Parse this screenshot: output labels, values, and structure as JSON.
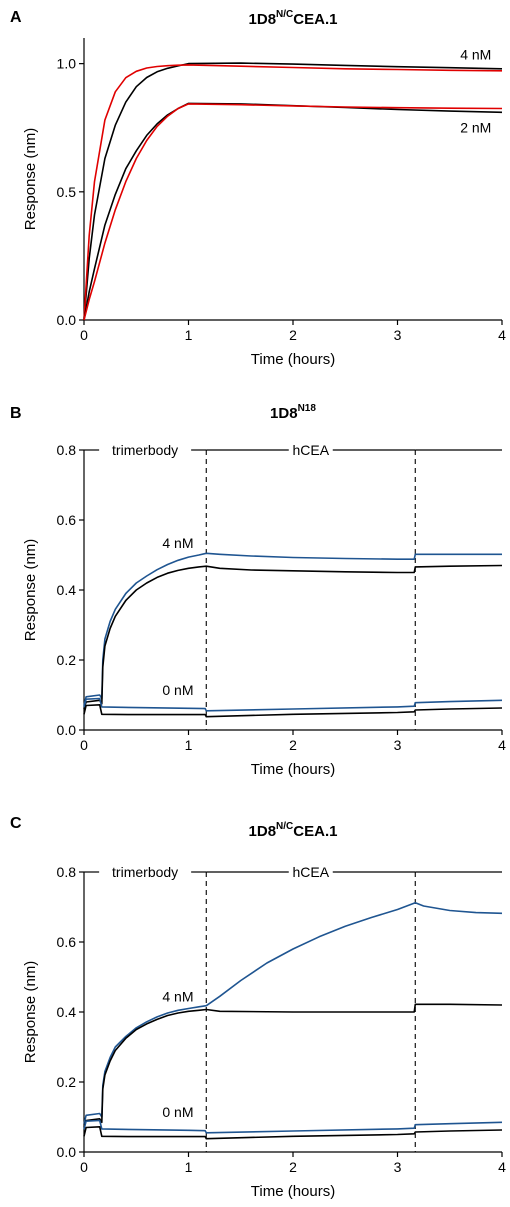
{
  "colors": {
    "measured_black": "#000000",
    "fit_red": "#e00000",
    "measured_blue": "#1f5591"
  },
  "chart_data": [
    {
      "panel": "A",
      "type": "line",
      "title": {
        "main": "1D8",
        "sup": "N/C",
        "rest": "CEA.1"
      },
      "xlabel": "Time (hours)",
      "ylabel": "Response (nm)",
      "xlim": [
        0,
        4
      ],
      "ylim": [
        0,
        1.1
      ],
      "xticks": [
        0,
        1,
        2,
        3,
        4
      ],
      "yticks": [
        0.0,
        0.5,
        1.0
      ],
      "ytick_labels": [
        "0.0",
        "0.5",
        "1.0"
      ],
      "grid": false,
      "annotations": [
        {
          "text": "4 nM",
          "x": 3.6,
          "y": 1.035
        },
        {
          "text": "2 nM",
          "x": 3.6,
          "y": 0.75
        }
      ],
      "series": [
        {
          "color": "#000000",
          "x": [
            0,
            0.05,
            0.1,
            0.2,
            0.3,
            0.4,
            0.5,
            0.6,
            0.7,
            0.8,
            0.9,
            1.0,
            1.5,
            2.0,
            2.5,
            3.0,
            3.5,
            4.0
          ],
          "y": [
            0,
            0.24,
            0.41,
            0.63,
            0.76,
            0.85,
            0.91,
            0.946,
            0.968,
            0.982,
            0.991,
            1.0,
            1.002,
            0.998,
            0.993,
            0.988,
            0.984,
            0.98
          ]
        },
        {
          "color": "#e00000",
          "x": [
            0,
            0.05,
            0.1,
            0.2,
            0.3,
            0.4,
            0.5,
            0.6,
            0.7,
            0.8,
            0.9,
            1.0,
            1.5,
            2.0,
            2.5,
            3.0,
            3.5,
            4.0
          ],
          "y": [
            0,
            0.33,
            0.54,
            0.78,
            0.89,
            0.945,
            0.97,
            0.983,
            0.989,
            0.992,
            0.994,
            0.995,
            0.99,
            0.985,
            0.98,
            0.977,
            0.974,
            0.972
          ]
        },
        {
          "color": "#000000",
          "x": [
            0,
            0.05,
            0.1,
            0.2,
            0.3,
            0.4,
            0.5,
            0.6,
            0.7,
            0.8,
            0.9,
            1.0,
            1.5,
            2.0,
            2.5,
            3.0,
            3.5,
            4.0
          ],
          "y": [
            0,
            0.11,
            0.2,
            0.37,
            0.49,
            0.59,
            0.66,
            0.72,
            0.765,
            0.8,
            0.825,
            0.845,
            0.843,
            0.836,
            0.829,
            0.821,
            0.815,
            0.81
          ]
        },
        {
          "color": "#e00000",
          "x": [
            0,
            0.05,
            0.1,
            0.2,
            0.3,
            0.4,
            0.5,
            0.6,
            0.7,
            0.8,
            0.9,
            1.0,
            1.5,
            2.0,
            2.5,
            3.0,
            3.5,
            4.0
          ],
          "y": [
            0,
            0.08,
            0.15,
            0.3,
            0.43,
            0.54,
            0.63,
            0.7,
            0.755,
            0.795,
            0.825,
            0.843,
            0.84,
            0.835,
            0.831,
            0.828,
            0.826,
            0.825
          ]
        }
      ]
    },
    {
      "panel": "B",
      "type": "line",
      "title": {
        "main": "1D8",
        "sup": "N18",
        "rest": ""
      },
      "xlabel": "Time (hours)",
      "ylabel": "Response (nm)",
      "xlim": [
        0,
        4
      ],
      "ylim": [
        0,
        0.8
      ],
      "xticks": [
        0,
        1,
        2,
        3,
        4
      ],
      "yticks": [
        0.0,
        0.2,
        0.4,
        0.6,
        0.8
      ],
      "ytick_labels": [
        "0.0",
        "0.2",
        "0.4",
        "0.6",
        "0.8"
      ],
      "grid": false,
      "phases": [
        {
          "label": "trimerbody",
          "start": 0,
          "end": 1.17
        },
        {
          "label": "hCEA",
          "start": 1.17,
          "end": 3.17
        },
        {
          "label": "",
          "start": 3.17,
          "end": 4
        }
      ],
      "dividers": [
        1.17,
        3.17
      ],
      "annotations": [
        {
          "text": "4 nM",
          "x": 0.75,
          "y": 0.535
        },
        {
          "text": "0 nM",
          "x": 0.75,
          "y": 0.115
        }
      ],
      "series": [
        {
          "color": "#1f5591",
          "x": [
            0,
            0.02,
            0.15,
            0.17,
            0.18,
            0.2,
            0.25,
            0.3,
            0.4,
            0.5,
            0.6,
            0.7,
            0.8,
            0.9,
            1.0,
            1.1,
            1.17,
            1.3,
            1.6,
            2.0,
            2.5,
            3.0,
            3.16,
            3.17,
            3.5,
            4.0
          ],
          "y": [
            0.07,
            0.095,
            0.1,
            0.09,
            0.2,
            0.26,
            0.31,
            0.345,
            0.39,
            0.42,
            0.44,
            0.458,
            0.473,
            0.485,
            0.494,
            0.5,
            0.505,
            0.502,
            0.497,
            0.493,
            0.49,
            0.488,
            0.488,
            0.502,
            0.502,
            0.502
          ]
        },
        {
          "color": "#000000",
          "x": [
            0,
            0.02,
            0.15,
            0.17,
            0.18,
            0.2,
            0.25,
            0.3,
            0.4,
            0.5,
            0.6,
            0.7,
            0.8,
            0.9,
            1.0,
            1.1,
            1.17,
            1.3,
            1.6,
            2.0,
            2.5,
            3.0,
            3.16,
            3.17,
            3.5,
            4.0
          ],
          "y": [
            0.06,
            0.08,
            0.085,
            0.075,
            0.18,
            0.24,
            0.29,
            0.325,
            0.37,
            0.4,
            0.42,
            0.436,
            0.448,
            0.456,
            0.462,
            0.466,
            0.468,
            0.462,
            0.457,
            0.455,
            0.452,
            0.45,
            0.45,
            0.466,
            0.468,
            0.47
          ]
        },
        {
          "color": "#1f5591",
          "x": [
            0,
            0.02,
            0.15,
            0.17,
            0.5,
            1.0,
            1.16,
            1.17,
            2.0,
            3.0,
            3.16,
            3.17,
            3.5,
            4.0
          ],
          "y": [
            0.065,
            0.088,
            0.09,
            0.066,
            0.064,
            0.062,
            0.061,
            0.055,
            0.06,
            0.066,
            0.068,
            0.078,
            0.081,
            0.085
          ]
        },
        {
          "color": "#000000",
          "x": [
            0,
            0.02,
            0.15,
            0.17,
            0.5,
            1.0,
            1.16,
            1.17,
            2.0,
            3.0,
            3.16,
            3.17,
            3.5,
            4.0
          ],
          "y": [
            0.045,
            0.07,
            0.072,
            0.045,
            0.044,
            0.044,
            0.044,
            0.038,
            0.045,
            0.05,
            0.052,
            0.057,
            0.06,
            0.063
          ]
        }
      ]
    },
    {
      "panel": "C",
      "type": "line",
      "title": {
        "main": "1D8",
        "sup": "N/C",
        "rest": "CEA.1"
      },
      "xlabel": "Time (hours)",
      "ylabel": "Response (nm)",
      "xlim": [
        0,
        4
      ],
      "ylim": [
        0,
        0.8
      ],
      "xticks": [
        0,
        1,
        2,
        3,
        4
      ],
      "yticks": [
        0.0,
        0.2,
        0.4,
        0.6,
        0.8
      ],
      "ytick_labels": [
        "0.0",
        "0.2",
        "0.4",
        "0.6",
        "0.8"
      ],
      "grid": false,
      "phases": [
        {
          "label": "trimerbody",
          "start": 0,
          "end": 1.17
        },
        {
          "label": "hCEA",
          "start": 1.17,
          "end": 3.17
        },
        {
          "label": "",
          "start": 3.17,
          "end": 4
        }
      ],
      "dividers": [
        1.17,
        3.17
      ],
      "annotations": [
        {
          "text": "4 nM",
          "x": 0.75,
          "y": 0.445
        },
        {
          "text": "0 nM",
          "x": 0.75,
          "y": 0.115
        }
      ],
      "series": [
        {
          "color": "#1f5591",
          "x": [
            0,
            0.02,
            0.15,
            0.17,
            0.18,
            0.2,
            0.25,
            0.3,
            0.4,
            0.5,
            0.6,
            0.7,
            0.8,
            0.9,
            1.0,
            1.1,
            1.17,
            1.3,
            1.5,
            1.75,
            2.0,
            2.25,
            2.5,
            2.75,
            3.0,
            3.17,
            3.25,
            3.5,
            3.75,
            4.0
          ],
          "y": [
            0.08,
            0.105,
            0.11,
            0.1,
            0.19,
            0.23,
            0.27,
            0.3,
            0.33,
            0.355,
            0.372,
            0.386,
            0.397,
            0.405,
            0.41,
            0.415,
            0.418,
            0.445,
            0.49,
            0.54,
            0.58,
            0.615,
            0.645,
            0.67,
            0.693,
            0.712,
            0.703,
            0.69,
            0.684,
            0.682
          ]
        },
        {
          "color": "#000000",
          "x": [
            0,
            0.02,
            0.15,
            0.17,
            0.18,
            0.2,
            0.25,
            0.3,
            0.4,
            0.5,
            0.6,
            0.7,
            0.8,
            0.9,
            1.0,
            1.1,
            1.17,
            1.3,
            2.0,
            3.0,
            3.16,
            3.17,
            3.5,
            4.0
          ],
          "y": [
            0.07,
            0.09,
            0.095,
            0.085,
            0.18,
            0.22,
            0.26,
            0.29,
            0.325,
            0.35,
            0.366,
            0.379,
            0.39,
            0.397,
            0.402,
            0.405,
            0.407,
            0.402,
            0.4,
            0.4,
            0.4,
            0.422,
            0.422,
            0.42
          ]
        },
        {
          "color": "#1f5591",
          "x": [
            0,
            0.02,
            0.15,
            0.17,
            0.5,
            1.0,
            1.16,
            1.17,
            2.0,
            3.0,
            3.16,
            3.17,
            3.5,
            4.0
          ],
          "y": [
            0.065,
            0.088,
            0.09,
            0.066,
            0.064,
            0.062,
            0.061,
            0.055,
            0.06,
            0.066,
            0.068,
            0.078,
            0.081,
            0.085
          ]
        },
        {
          "color": "#000000",
          "x": [
            0,
            0.02,
            0.15,
            0.17,
            0.5,
            1.0,
            1.16,
            1.17,
            2.0,
            3.0,
            3.16,
            3.17,
            3.5,
            4.0
          ],
          "y": [
            0.045,
            0.07,
            0.072,
            0.045,
            0.044,
            0.044,
            0.044,
            0.038,
            0.045,
            0.05,
            0.052,
            0.057,
            0.06,
            0.063
          ]
        }
      ]
    }
  ]
}
